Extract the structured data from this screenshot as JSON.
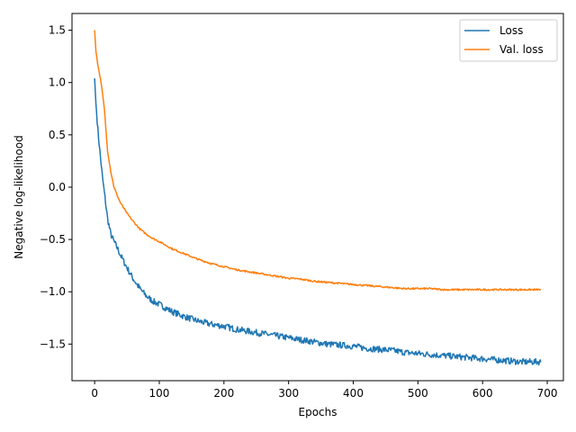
{
  "chart_data": {
    "type": "line",
    "title": "",
    "xlabel": "Epochs",
    "ylabel": "Negative log-likelihood",
    "xlim": [
      -35,
      725
    ],
    "ylim": [
      -1.85,
      1.66
    ],
    "xticks": [
      0,
      100,
      200,
      300,
      400,
      500,
      600,
      700
    ],
    "yticks": [
      -1.5,
      -1.0,
      -0.5,
      0.0,
      0.5,
      1.0,
      1.5
    ],
    "xtick_labels": [
      "0",
      "100",
      "200",
      "300",
      "400",
      "500",
      "600",
      "700"
    ],
    "ytick_labels": [
      "−1.5",
      "−1.0",
      "−0.5",
      "0.0",
      "0.5",
      "1.0",
      "1.5"
    ],
    "grid": false,
    "legend": "top-right",
    "series": [
      {
        "name": "Loss",
        "color": "#1f77b4",
        "x": [
          0,
          2,
          5,
          8,
          12,
          16,
          20,
          25,
          30,
          35,
          40,
          50,
          60,
          70,
          80,
          90,
          100,
          120,
          140,
          160,
          180,
          200,
          220,
          240,
          260,
          280,
          300,
          320,
          340,
          360,
          380,
          400,
          420,
          440,
          460,
          480,
          500,
          520,
          540,
          560,
          580,
          600,
          620,
          640,
          660,
          680,
          690
        ],
        "y": [
          1.04,
          0.8,
          0.55,
          0.35,
          0.1,
          -0.1,
          -0.3,
          -0.45,
          -0.52,
          -0.58,
          -0.65,
          -0.77,
          -0.88,
          -0.97,
          -1.04,
          -1.09,
          -1.12,
          -1.19,
          -1.24,
          -1.28,
          -1.31,
          -1.33,
          -1.36,
          -1.38,
          -1.4,
          -1.42,
          -1.44,
          -1.46,
          -1.48,
          -1.5,
          -1.51,
          -1.52,
          -1.54,
          -1.55,
          -1.56,
          -1.58,
          -1.59,
          -1.6,
          -1.61,
          -1.62,
          -1.63,
          -1.64,
          -1.65,
          -1.66,
          -1.67,
          -1.67,
          -1.67
        ]
      },
      {
        "name": "Val. loss",
        "color": "#ff7f0e",
        "x": [
          0,
          2,
          5,
          10,
          15,
          20,
          25,
          30,
          35,
          40,
          50,
          60,
          70,
          80,
          90,
          100,
          120,
          140,
          160,
          180,
          200,
          220,
          240,
          260,
          280,
          300,
          320,
          340,
          360,
          380,
          400,
          420,
          440,
          460,
          480,
          500,
          520,
          540,
          560,
          580,
          600,
          620,
          640,
          660,
          680,
          690
        ],
        "y": [
          1.5,
          1.3,
          1.17,
          1.0,
          0.75,
          0.35,
          0.15,
          0.0,
          -0.08,
          -0.15,
          -0.25,
          -0.33,
          -0.4,
          -0.45,
          -0.49,
          -0.52,
          -0.59,
          -0.64,
          -0.69,
          -0.73,
          -0.76,
          -0.79,
          -0.81,
          -0.83,
          -0.85,
          -0.87,
          -0.88,
          -0.9,
          -0.91,
          -0.92,
          -0.93,
          -0.94,
          -0.95,
          -0.96,
          -0.97,
          -0.97,
          -0.97,
          -0.98,
          -0.98,
          -0.98,
          -0.98,
          -0.98,
          -0.98,
          -0.98,
          -0.98,
          -0.98
        ]
      }
    ]
  }
}
